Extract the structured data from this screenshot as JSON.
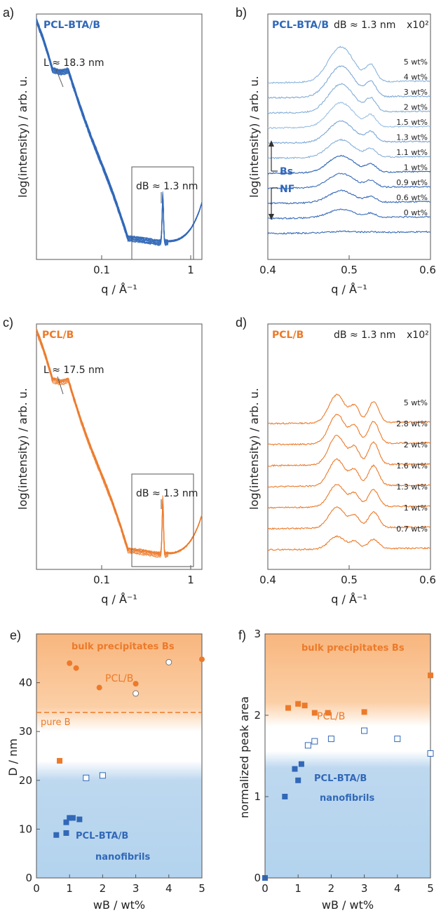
{
  "chart_data": [
    {
      "id": "a",
      "panel_label": "a)",
      "type": "line",
      "scale_x": "log",
      "legend_label": "PCL-BTA/B",
      "xlabel": "q / Å⁻¹",
      "ylabel": "log(intensity) / arb. u.",
      "xlim": [
        0.02,
        1.3
      ],
      "xticks": [
        {
          "v": 0.1,
          "label": "0.1"
        },
        {
          "v": 1,
          "label": "1"
        }
      ],
      "annotations": [
        "L ≈ 18.3 nm",
        "dB ≈ 1.3 nm"
      ],
      "color": "#3168b8",
      "n_curves": 11
    },
    {
      "id": "b",
      "panel_label": "b)",
      "type": "line",
      "legend_label": "PCL-BTA/B",
      "title": "dB ≈ 1.3 nm",
      "multiplier": "x10²",
      "xlabel": "q / Å⁻¹",
      "ylabel": "log(intensity) / arb. u.",
      "xlim": [
        0.4,
        0.6
      ],
      "xticks": [
        {
          "v": 0.4,
          "label": "0.4"
        },
        {
          "v": 0.5,
          "label": "0.5"
        },
        {
          "v": 0.6,
          "label": "0.6"
        }
      ],
      "series": [
        {
          "name": "5 wt%",
          "color": "#8ab4de",
          "amp": 50
        },
        {
          "name": "4 wt%",
          "color": "#7ea9d8",
          "amp": 44
        },
        {
          "name": "3 wt%",
          "color": "#83aed9",
          "amp": 40
        },
        {
          "name": "2 wt%",
          "color": "#9cc0e3",
          "amp": 35
        },
        {
          "name": "1.5 wt%",
          "color": "#78a6d6",
          "amp": 30
        },
        {
          "name": "1.3 wt%",
          "color": "#87b0da",
          "amp": 25
        },
        {
          "name": "1.1 wt%",
          "color": "#2e63b5",
          "amp": 24
        },
        {
          "name": "1 wt%",
          "color": "#3a6dbb",
          "amp": 20
        },
        {
          "name": "0.9 wt%",
          "color": "#3468b8",
          "amp": 17
        },
        {
          "name": "0.6 wt%",
          "color": "#3a6dbb",
          "amp": 12
        },
        {
          "name": "0 wt%",
          "color": "#3168b8",
          "amp": 2
        }
      ],
      "group_labels": {
        "upper": "Bs",
        "lower": "NF"
      }
    },
    {
      "id": "c",
      "panel_label": "c)",
      "type": "line",
      "scale_x": "log",
      "legend_label": "PCL/B",
      "xlabel": "q / Å⁻¹",
      "ylabel": "log(intensity) / arb. u.",
      "xlim": [
        0.02,
        1.3
      ],
      "xticks": [
        {
          "v": 0.1,
          "label": "0.1"
        },
        {
          "v": 1,
          "label": "1"
        }
      ],
      "annotations": [
        "L ≈ 17.5 nm",
        "dB ≈ 1.3 nm"
      ],
      "color": "#ec7a2a",
      "n_curves": 7
    },
    {
      "id": "d",
      "panel_label": "d)",
      "type": "line",
      "legend_label": "PCL/B",
      "title": "dB ≈ 1.3 nm",
      "multiplier": "x10²",
      "xlabel": "q / Å⁻¹",
      "ylabel": "log(intensity) / arb. u.",
      "xlim": [
        0.4,
        0.6
      ],
      "xticks": [
        {
          "v": 0.4,
          "label": "0.4"
        },
        {
          "v": 0.5,
          "label": "0.5"
        },
        {
          "v": 0.6,
          "label": "0.6"
        }
      ],
      "series": [
        {
          "name": "5 wt%",
          "amp": 40
        },
        {
          "name": "2.8 wt%",
          "amp": 42
        },
        {
          "name": "2 wt%",
          "amp": 42
        },
        {
          "name": "1.6 wt%",
          "amp": 38
        },
        {
          "name": "1.3 wt%",
          "amp": 32
        },
        {
          "name": "1 wt%",
          "amp": 30
        },
        {
          "name": "0.7 wt%",
          "amp": 18
        }
      ],
      "color": "#ec7a2a"
    },
    {
      "id": "e",
      "panel_label": "e)",
      "type": "scatter",
      "xlabel": "wB / wt%",
      "ylabel": "D / nm",
      "xlim": [
        0,
        5
      ],
      "ylim": [
        0,
        50
      ],
      "xticks": [
        0,
        1,
        2,
        3,
        4,
        5
      ],
      "yticks": [
        0,
        10,
        20,
        30,
        40
      ],
      "pure_B_line": 38,
      "labels": {
        "bulk": "bulk precipitates Bs",
        "pcl": "PCL/B",
        "pure": "pure B",
        "btab": "PCL-BTA/B",
        "nano": "nanofibrils"
      },
      "series": [
        {
          "name": "PCL/B circles",
          "marker": "circle",
          "fill": "#ec7a2a",
          "points": [
            [
              1.0,
              44.0
            ],
            [
              1.2,
              43.0
            ],
            [
              1.9,
              39.0
            ],
            [
              3.0,
              39.8
            ],
            [
              5.0,
              44.8
            ]
          ]
        },
        {
          "name": "PCL-BTA/B open circles",
          "marker": "circle",
          "fill": "#ffffff",
          "stroke": "#777777",
          "points": [
            [
              3.0,
              37.8
            ],
            [
              4.0,
              44.2
            ]
          ]
        },
        {
          "name": "PCL/B square",
          "marker": "square",
          "fill": "#ec7a2a",
          "points": [
            [
              0.7,
              24.0
            ]
          ]
        },
        {
          "name": "PCL-BTA/B open squares",
          "marker": "square",
          "fill": "#ffffff",
          "stroke": "#3168b8",
          "points": [
            [
              1.5,
              20.5
            ],
            [
              2.0,
              21.0
            ]
          ]
        },
        {
          "name": "PCL-BTA/B squares",
          "marker": "square",
          "fill": "#3168b8",
          "points": [
            [
              0.6,
              8.8
            ],
            [
              0.9,
              9.2
            ],
            [
              0.9,
              11.4
            ],
            [
              1.0,
              12.3
            ],
            [
              1.1,
              12.3
            ],
            [
              1.3,
              12.0
            ]
          ]
        }
      ]
    },
    {
      "id": "f",
      "panel_label": "f)",
      "type": "scatter",
      "xlabel": "wB / wt%",
      "ylabel": "normalized peak area",
      "xlim": [
        0,
        5
      ],
      "ylim": [
        0,
        3
      ],
      "xticks": [
        0,
        1,
        2,
        3,
        4,
        5
      ],
      "yticks": [
        0,
        1,
        2,
        3
      ],
      "labels": {
        "bulk": "bulk precipitates Bs",
        "pcl": "PCL/B",
        "btab": "PCL-BTA/B",
        "nano": "nanofibrils"
      },
      "series": [
        {
          "name": "PCL/B squares",
          "marker": "square",
          "fill": "#ec7a2a",
          "points": [
            [
              0.7,
              2.09
            ],
            [
              1.0,
              2.14
            ],
            [
              1.2,
              2.12
            ],
            [
              1.5,
              2.03
            ],
            [
              1.9,
              2.03
            ],
            [
              3.0,
              2.04
            ],
            [
              5.0,
              2.49
            ]
          ]
        },
        {
          "name": "PCL-BTA/B open squares",
          "marker": "square",
          "fill": "#ffffff",
          "stroke": "#3168b8",
          "points": [
            [
              1.3,
              1.63
            ],
            [
              1.5,
              1.68
            ],
            [
              2.0,
              1.71
            ],
            [
              3.0,
              1.81
            ],
            [
              4.0,
              1.71
            ],
            [
              5.0,
              1.53
            ]
          ]
        },
        {
          "name": "PCL-BTA/B squares",
          "marker": "square",
          "fill": "#3168b8",
          "points": [
            [
              0.0,
              0.0
            ],
            [
              0.6,
              1.0
            ],
            [
              0.9,
              1.34
            ],
            [
              1.0,
              1.2
            ],
            [
              1.1,
              1.4
            ]
          ]
        }
      ]
    }
  ]
}
